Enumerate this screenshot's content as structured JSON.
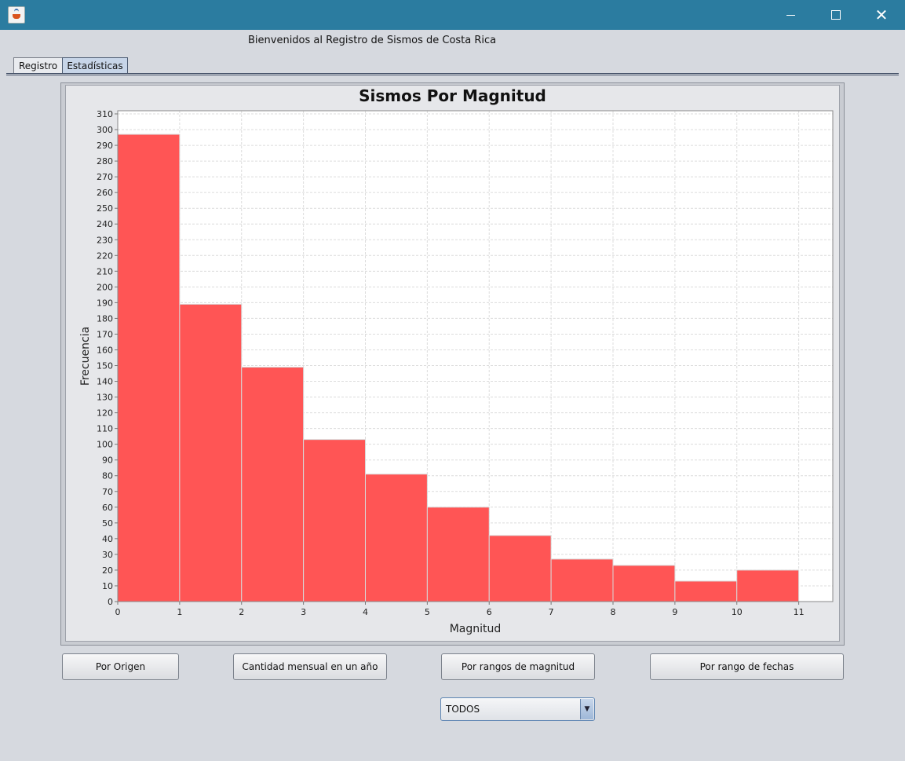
{
  "window": {
    "buttons": {
      "minimize": "—",
      "maximize": "□",
      "close": "✕"
    }
  },
  "header": {
    "welcome": "Bienvenidos al Registro de Sismos de Costa Rica"
  },
  "tabs": [
    {
      "label": "Registro",
      "active": false
    },
    {
      "label": "Estadísticas",
      "active": true
    }
  ],
  "chart_data": {
    "type": "bar",
    "title": "Sismos Por Magnitud",
    "xlabel": "Magnitud",
    "ylabel": "Frecuencia",
    "bins": [
      {
        "from": 0,
        "to": 1,
        "value": 297
      },
      {
        "from": 1,
        "to": 2,
        "value": 189
      },
      {
        "from": 2,
        "to": 3,
        "value": 149
      },
      {
        "from": 3,
        "to": 4,
        "value": 103
      },
      {
        "from": 4,
        "to": 5,
        "value": 81
      },
      {
        "from": 5,
        "to": 6,
        "value": 60
      },
      {
        "from": 6,
        "to": 7,
        "value": 42
      },
      {
        "from": 7,
        "to": 8,
        "value": 27
      },
      {
        "from": 8,
        "to": 9,
        "value": 23
      },
      {
        "from": 9,
        "to": 10,
        "value": 13
      },
      {
        "from": 10,
        "to": 11,
        "value": 20
      }
    ],
    "xlim": [
      0,
      11.55
    ],
    "ylim": [
      0,
      312
    ],
    "xticks": [
      "0",
      "1",
      "2",
      "3",
      "4",
      "5",
      "6",
      "7",
      "8",
      "9",
      "10",
      "11"
    ],
    "yticks": [
      "0",
      "10",
      "20",
      "30",
      "40",
      "50",
      "60",
      "70",
      "80",
      "90",
      "100",
      "110",
      "120",
      "130",
      "140",
      "150",
      "160",
      "170",
      "180",
      "190",
      "200",
      "210",
      "220",
      "230",
      "240",
      "250",
      "260",
      "270",
      "280",
      "290",
      "300",
      "310"
    ],
    "grid": true,
    "bar_color": "#ff5555"
  },
  "buttons": {
    "por_origen": "Por Origen",
    "cantidad_mensual": "Cantidad mensual en un año",
    "por_rangos_magnitud": "Por rangos de magnitud",
    "por_rango_fechas": "Por rango de fechas"
  },
  "filter": {
    "selected": "TODOS"
  },
  "icons": {
    "app": "java-icon",
    "combo_arrow": "chevron-down-icon"
  }
}
